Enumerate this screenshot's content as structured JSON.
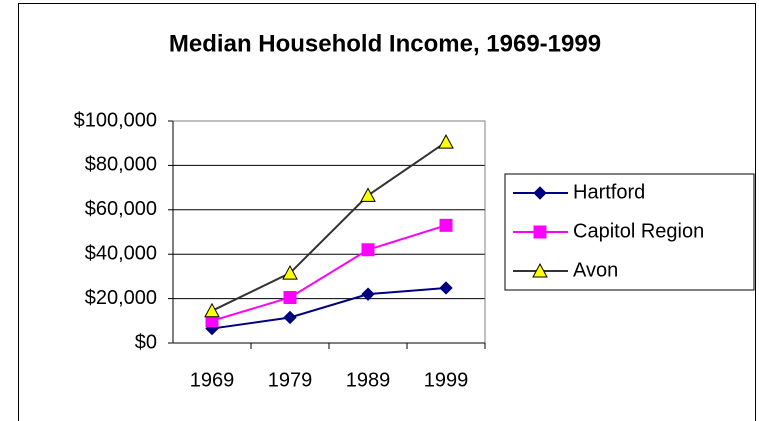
{
  "chart_data": {
    "type": "line",
    "title": "Median Household Income, 1969-1999",
    "categories": [
      "1969",
      "1979",
      "1989",
      "1999"
    ],
    "series": [
      {
        "name": "Hartford",
        "color": "#000080",
        "marker": "diamond",
        "values": [
          6500,
          11500,
          22000,
          24800
        ]
      },
      {
        "name": "Capitol Region",
        "color": "#ff00ff",
        "marker": "square",
        "values": [
          10000,
          20500,
          42000,
          53000
        ]
      },
      {
        "name": "Avon",
        "color": "#333333",
        "marker": "triangle",
        "marker_color": "#ffff00",
        "values": [
          14500,
          31500,
          66500,
          90500
        ]
      }
    ],
    "ylim": [
      0,
      100000
    ],
    "yticks": [
      {
        "value": 0,
        "label": "$0"
      },
      {
        "value": 20000,
        "label": "$20,000"
      },
      {
        "value": 40000,
        "label": "$40,000"
      },
      {
        "value": 60000,
        "label": "$60,000"
      },
      {
        "value": 80000,
        "label": "$80,000"
      },
      {
        "value": 100000,
        "label": "$100,000"
      }
    ],
    "grid": true,
    "legend": "right"
  }
}
